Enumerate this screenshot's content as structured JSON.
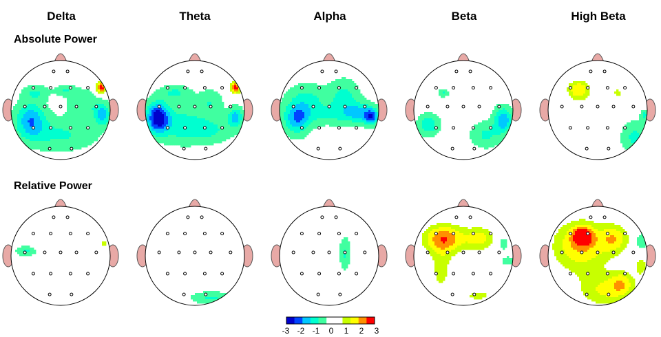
{
  "bands": [
    "Delta",
    "Theta",
    "Alpha",
    "Beta",
    "High Beta"
  ],
  "rows": [
    "Absolute Power",
    "Relative Power"
  ],
  "colorbar": {
    "ticks": [
      "-3",
      "-2",
      "-1",
      "0",
      "1",
      "2",
      "3"
    ],
    "colors": [
      "#0000cc",
      "#0044ff",
      "#00c8ff",
      "#00ffd0",
      "#40ffa0",
      "#ffffff",
      "#ffffff",
      "#c8ff00",
      "#ffff00",
      "#ff9000",
      "#ff0000"
    ]
  },
  "scale": {
    "min": -3,
    "max": 3
  },
  "electrodes": [
    [
      -0.14,
      -0.78
    ],
    [
      0.14,
      -0.78
    ],
    [
      -0.55,
      -0.45
    ],
    [
      -0.2,
      -0.45
    ],
    [
      0.2,
      -0.45
    ],
    [
      0.55,
      -0.45
    ],
    [
      -0.72,
      -0.07
    ],
    [
      -0.32,
      -0.07
    ],
    [
      0,
      -0.07
    ],
    [
      0.32,
      -0.07
    ],
    [
      0.72,
      -0.07
    ],
    [
      -0.55,
      0.36
    ],
    [
      -0.2,
      0.36
    ],
    [
      0.2,
      0.36
    ],
    [
      0.55,
      0.36
    ],
    [
      -0.22,
      0.78
    ],
    [
      0.22,
      0.78
    ]
  ],
  "maps": [
    [
      {
        "band": "Delta",
        "blobs": [
          [
            -0.6,
            0.2,
            0.3,
            0.35,
            -1.8
          ],
          [
            0.85,
            0.1,
            0.15,
            0.2,
            -1.6
          ],
          [
            0.82,
            -0.45,
            0.1,
            0.12,
            2.9
          ],
          [
            0,
            0.5,
            0.7,
            0.3,
            -0.9
          ],
          [
            -0.5,
            -0.35,
            0.25,
            0.15,
            -0.8
          ],
          [
            0.5,
            -0.1,
            0.35,
            0.3,
            -0.8
          ],
          [
            0.1,
            -0.4,
            0.2,
            0.1,
            -0.8
          ]
        ]
      },
      {
        "band": "Theta",
        "blobs": [
          [
            -0.75,
            0.15,
            0.22,
            0.3,
            -2.8
          ],
          [
            0.82,
            0.15,
            0.15,
            0.2,
            -1.6
          ],
          [
            0.82,
            -0.45,
            0.1,
            0.12,
            2.9
          ],
          [
            -0.3,
            0.3,
            0.45,
            0.35,
            -1.1
          ],
          [
            0.3,
            0.4,
            0.45,
            0.25,
            -0.9
          ],
          [
            -0.4,
            -0.35,
            0.3,
            0.15,
            -0.9
          ],
          [
            0.3,
            -0.15,
            0.25,
            0.25,
            -0.8
          ]
        ]
      },
      {
        "band": "Alpha",
        "blobs": [
          [
            -0.65,
            0.2,
            0.25,
            0.3,
            -1.6
          ],
          [
            0.85,
            0.15,
            0.12,
            0.15,
            -1.8
          ],
          [
            0.65,
            0.05,
            0.3,
            0.2,
            -1.2
          ],
          [
            -0.45,
            -0.2,
            0.4,
            0.3,
            -1
          ],
          [
            0.3,
            -0.25,
            0.3,
            0.35,
            -1
          ],
          [
            0,
            0.1,
            0.9,
            0.2,
            -0.7
          ]
        ]
      },
      {
        "band": "Beta",
        "blobs": [
          [
            0.8,
            0.2,
            0.18,
            0.25,
            -1.8
          ],
          [
            0.45,
            0.5,
            0.3,
            0.25,
            -0.9
          ],
          [
            -0.7,
            0.3,
            0.2,
            0.2,
            -1.3
          ],
          [
            -0.4,
            -0.35,
            0.09,
            0.08,
            -0.9
          ]
        ]
      },
      {
        "band": "High Beta",
        "blobs": [
          [
            -0.38,
            -0.4,
            0.25,
            0.22,
            1.9
          ],
          [
            0.4,
            -0.35,
            0.12,
            0.12,
            1.0
          ],
          [
            0.75,
            0.55,
            0.25,
            0.3,
            -1.0
          ],
          [
            0.95,
            0.1,
            0.08,
            0.1,
            -1
          ]
        ]
      }
    ],
    [
      {
        "band": "Delta",
        "blobs": [
          [
            -0.7,
            -0.1,
            0.18,
            0.09,
            -0.9
          ],
          [
            0.88,
            -0.25,
            0.1,
            0.12,
            1.1
          ]
        ]
      },
      {
        "band": "Theta",
        "blobs": [
          [
            0.35,
            0.85,
            0.4,
            0.12,
            -0.9
          ]
        ]
      },
      {
        "band": "Alpha",
        "blobs": [
          [
            0.32,
            -0.05,
            0.1,
            0.3,
            -0.9
          ]
        ]
      },
      {
        "band": "Beta",
        "blobs": [
          [
            -0.38,
            -0.35,
            0.45,
            0.3,
            2.3
          ],
          [
            0.35,
            -0.35,
            0.3,
            0.25,
            1.5
          ],
          [
            -0.45,
            0.3,
            0.25,
            0.55,
            1.0
          ],
          [
            0.3,
            0.8,
            0.35,
            0.15,
            1.0
          ],
          [
            0.8,
            -0.25,
            0.1,
            0.12,
            -0.8
          ],
          [
            0.9,
            0.1,
            0.12,
            0.08,
            -0.8
          ]
        ]
      },
      {
        "band": "High Beta",
        "blobs": [
          [
            -0.35,
            -0.2,
            0.6,
            0.55,
            1.9
          ],
          [
            -0.3,
            -0.4,
            0.2,
            0.18,
            2.2
          ],
          [
            0.35,
            -0.35,
            0.3,
            0.3,
            1.5
          ],
          [
            0.15,
            0.7,
            0.55,
            0.35,
            1.4
          ],
          [
            0.5,
            0.55,
            0.25,
            0.25,
            1.2
          ],
          [
            0.88,
            0.2,
            0.12,
            0.2,
            1.2
          ],
          [
            0.88,
            -0.3,
            0.12,
            0.15,
            -0.9
          ]
        ]
      }
    ]
  ]
}
